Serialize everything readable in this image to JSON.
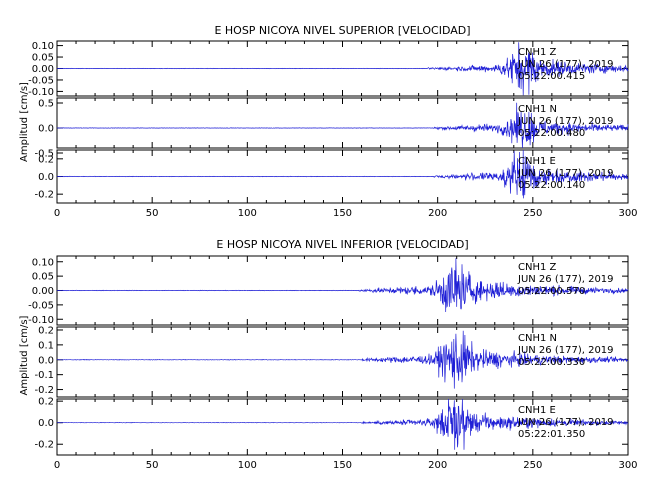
{
  "chart_data": {
    "type": "line",
    "x_ticks": [
      0,
      50,
      100,
      150,
      200,
      250,
      300
    ],
    "panels": [
      {
        "title": "E HOSP NICOYA NIVEL SUPERIOR [VELOCIDAD]",
        "ylabel": "Amplitud [cm/s]",
        "xlim": [
          0,
          300
        ],
        "traces": [
          {
            "station": "CNH1",
            "comp": "Z",
            "date": "JUN 26 (177), 2019",
            "time": "05:22:00.415",
            "ylim": [
              -0.12,
              0.12
            ],
            "y_ticks": [
              "0.10",
              "0.05",
              "0.00",
              "-0.05",
              "-0.10"
            ],
            "y_tick_values": [
              0.1,
              0.05,
              0.0,
              -0.05,
              -0.1
            ],
            "onset_s": 195,
            "peak_s": 245,
            "peak_amp": 0.11,
            "coda_amp": 0.01
          },
          {
            "station": "CNH1",
            "comp": "N",
            "date": "JUN 26 (177), 2019",
            "time": "05:22:00.480",
            "ylim": [
              -0.4,
              0.6
            ],
            "y_ticks": [
              "0.5",
              "0.0",
              "-0.5"
            ],
            "y_tick_values": [
              0.5,
              0.0,
              -0.5
            ],
            "onset_s": 198,
            "peak_s": 245,
            "peak_amp": 0.4,
            "coda_amp": 0.05
          },
          {
            "station": "CNH1",
            "comp": "E",
            "date": "JUN 26 (177), 2019",
            "time": "05:22:00.140",
            "ylim": [
              -0.3,
              0.3
            ],
            "y_ticks": [
              "0.2",
              "0.0",
              "-0.2"
            ],
            "y_tick_values": [
              0.2,
              0.0,
              -0.2
            ],
            "onset_s": 198,
            "peak_s": 245,
            "peak_amp": 0.27,
            "coda_amp": 0.03
          }
        ]
      },
      {
        "title": "E HOSP NICOYA NIVEL INFERIOR [VELOCIDAD]",
        "ylabel": "Amplitud [cm/s]",
        "xlim": [
          0,
          300
        ],
        "traces": [
          {
            "station": "CNH1",
            "comp": "Z",
            "date": "JUN 26 (177), 2019",
            "time": "05:22:00.570",
            "ylim": [
              -0.12,
              0.12
            ],
            "y_ticks": [
              "0.10",
              "0.05",
              "0.00",
              "-0.05",
              "-0.10"
            ],
            "y_tick_values": [
              0.1,
              0.05,
              0.0,
              -0.05,
              -0.1
            ],
            "onset_s": 158,
            "peak_s": 210,
            "peak_amp": 0.11,
            "coda_amp": 0.01
          },
          {
            "station": "CNH1",
            "comp": "N",
            "date": "JUN 26 (177), 2019",
            "time": "05:22:00.330",
            "ylim": [
              -0.25,
              0.22
            ],
            "y_ticks": [
              "0.2",
              "0.1",
              "0.0",
              "-0.1",
              "-0.2"
            ],
            "y_tick_values": [
              0.2,
              0.1,
              0.0,
              -0.1,
              -0.2
            ],
            "onset_s": 160,
            "peak_s": 210,
            "peak_amp": 0.2,
            "coda_amp": 0.02
          },
          {
            "station": "CNH1",
            "comp": "E",
            "date": "JUN 26 (177), 2019",
            "time": "05:22:01.350",
            "ylim": [
              -0.3,
              0.22
            ],
            "y_ticks": [
              "0.2",
              "0.0",
              "-0.2"
            ],
            "y_tick_values": [
              0.2,
              0.0,
              -0.2
            ],
            "onset_s": 160,
            "peak_s": 210,
            "peak_amp": 0.25,
            "coda_amp": 0.02
          }
        ]
      }
    ]
  },
  "colors": {
    "trace": "#1f1fd6",
    "axis": "#000000"
  }
}
